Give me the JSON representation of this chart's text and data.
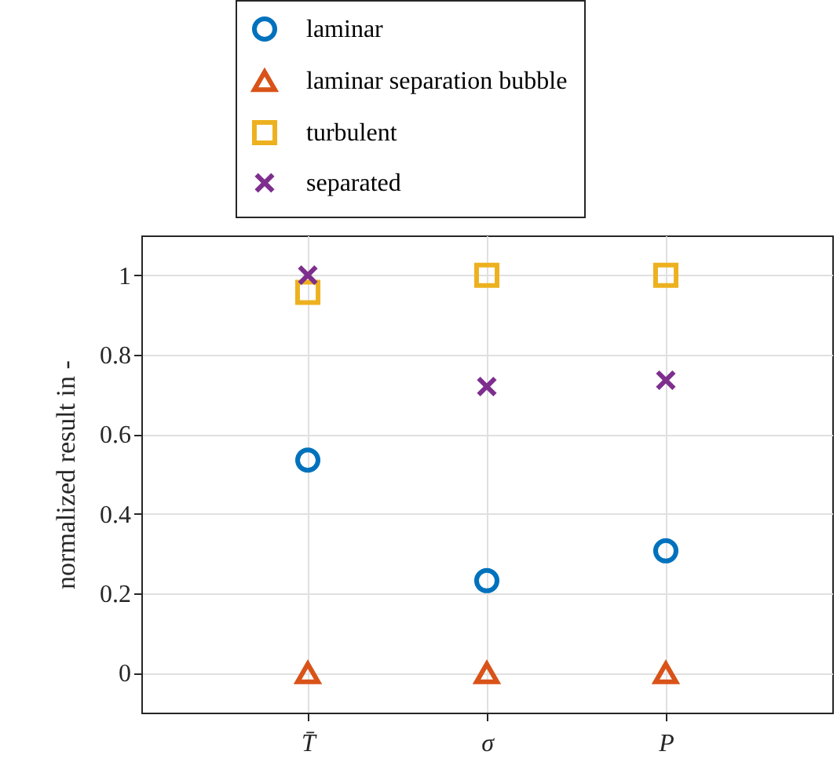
{
  "chart_data": {
    "type": "scatter",
    "ylabel": "normalized result in -",
    "categories": [
      "T̄",
      "σ",
      "P"
    ],
    "series": [
      {
        "name": "laminar",
        "color": "#0072bd",
        "marker": "circle",
        "values": [
          0.535,
          0.232,
          0.307
        ]
      },
      {
        "name": "laminar separation bubble",
        "color": "#d95319",
        "marker": "triangle",
        "values": [
          0,
          0,
          0
        ]
      },
      {
        "name": "turbulent",
        "color": "#edb120",
        "marker": "square",
        "values": [
          0.957,
          1,
          1
        ]
      },
      {
        "name": "separated",
        "color": "#7e2f8e",
        "marker": "cross",
        "values": [
          1,
          0.72,
          0.736
        ]
      }
    ],
    "ylim": [
      -0.1,
      1.1
    ],
    "yticks": [
      0,
      0.2,
      0.4,
      0.6,
      0.8,
      1
    ],
    "grid": true,
    "legend": "top"
  }
}
